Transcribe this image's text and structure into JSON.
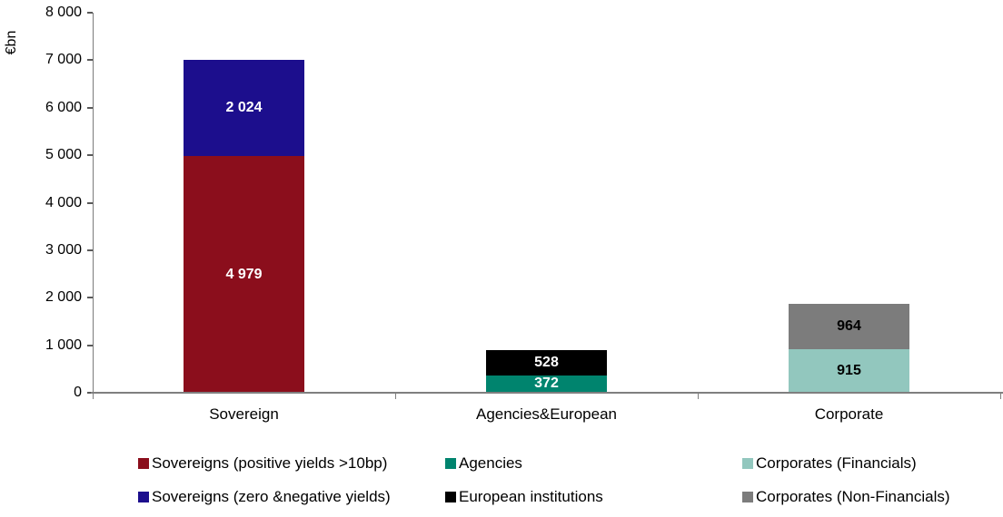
{
  "chart_data": {
    "type": "bar",
    "stacked": true,
    "title": "",
    "xlabel": "",
    "ylabel": "€bn",
    "ylim": [
      0,
      8000
    ],
    "ytick_step": 1000,
    "ytick_labels": [
      "0",
      "1 000",
      "2 000",
      "3 000",
      "4 000",
      "5 000",
      "6 000",
      "7 000",
      "8 000"
    ],
    "grid": false,
    "legend_position": "bottom",
    "categories": [
      "Sovereign",
      "Agencies&European",
      "Corporate"
    ],
    "series": [
      {
        "name": "Sovereigns (positive yields >10bp)",
        "color": "#8B0E1C",
        "label_color": "#FFFFFF",
        "values": [
          4979,
          null,
          null
        ],
        "labels": [
          "4 979",
          "",
          ""
        ]
      },
      {
        "name": "Sovereigns (zero &negative yields)",
        "color": "#1C0E8D",
        "label_color": "#FFFFFF",
        "values": [
          2024,
          null,
          null
        ],
        "labels": [
          "2 024",
          "",
          ""
        ]
      },
      {
        "name": "Agencies",
        "color": "#00846E",
        "label_color": "#FFFFFF",
        "values": [
          null,
          372,
          null
        ],
        "labels": [
          "",
          "372",
          ""
        ]
      },
      {
        "name": "European institutions",
        "color": "#000000",
        "label_color": "#FFFFFF",
        "values": [
          null,
          528,
          null
        ],
        "labels": [
          "",
          "528",
          ""
        ]
      },
      {
        "name": "Corporates (Financials)",
        "color": "#92C7BE",
        "label_color": "#000000",
        "values": [
          null,
          null,
          915
        ],
        "labels": [
          "",
          "",
          "915"
        ]
      },
      {
        "name": "Corporates (Non-Financials)",
        "color": "#7C7C7C",
        "label_color": "#000000",
        "values": [
          null,
          null,
          964
        ],
        "labels": [
          "",
          "",
          "964"
        ]
      }
    ],
    "category_totals": [
      7003,
      900,
      1879
    ],
    "legend_rows": [
      [
        {
          "name": "Sovereigns (positive yields >10bp)",
          "color": "#8B0E1C"
        },
        {
          "name": "Agencies",
          "color": "#00846E"
        },
        {
          "name": "Corporates (Financials)",
          "color": "#92C7BE"
        }
      ],
      [
        {
          "name": "Sovereigns (zero &negative yields)",
          "color": "#1C0E8D"
        },
        {
          "name": "European institutions",
          "color": "#000000"
        },
        {
          "name": "Corporates (Non-Financials)",
          "color": "#7C7C7C"
        }
      ]
    ]
  },
  "axis": {
    "line_color": "#7f7f7f",
    "tick_color": "#595959",
    "text_color": "#000000"
  }
}
